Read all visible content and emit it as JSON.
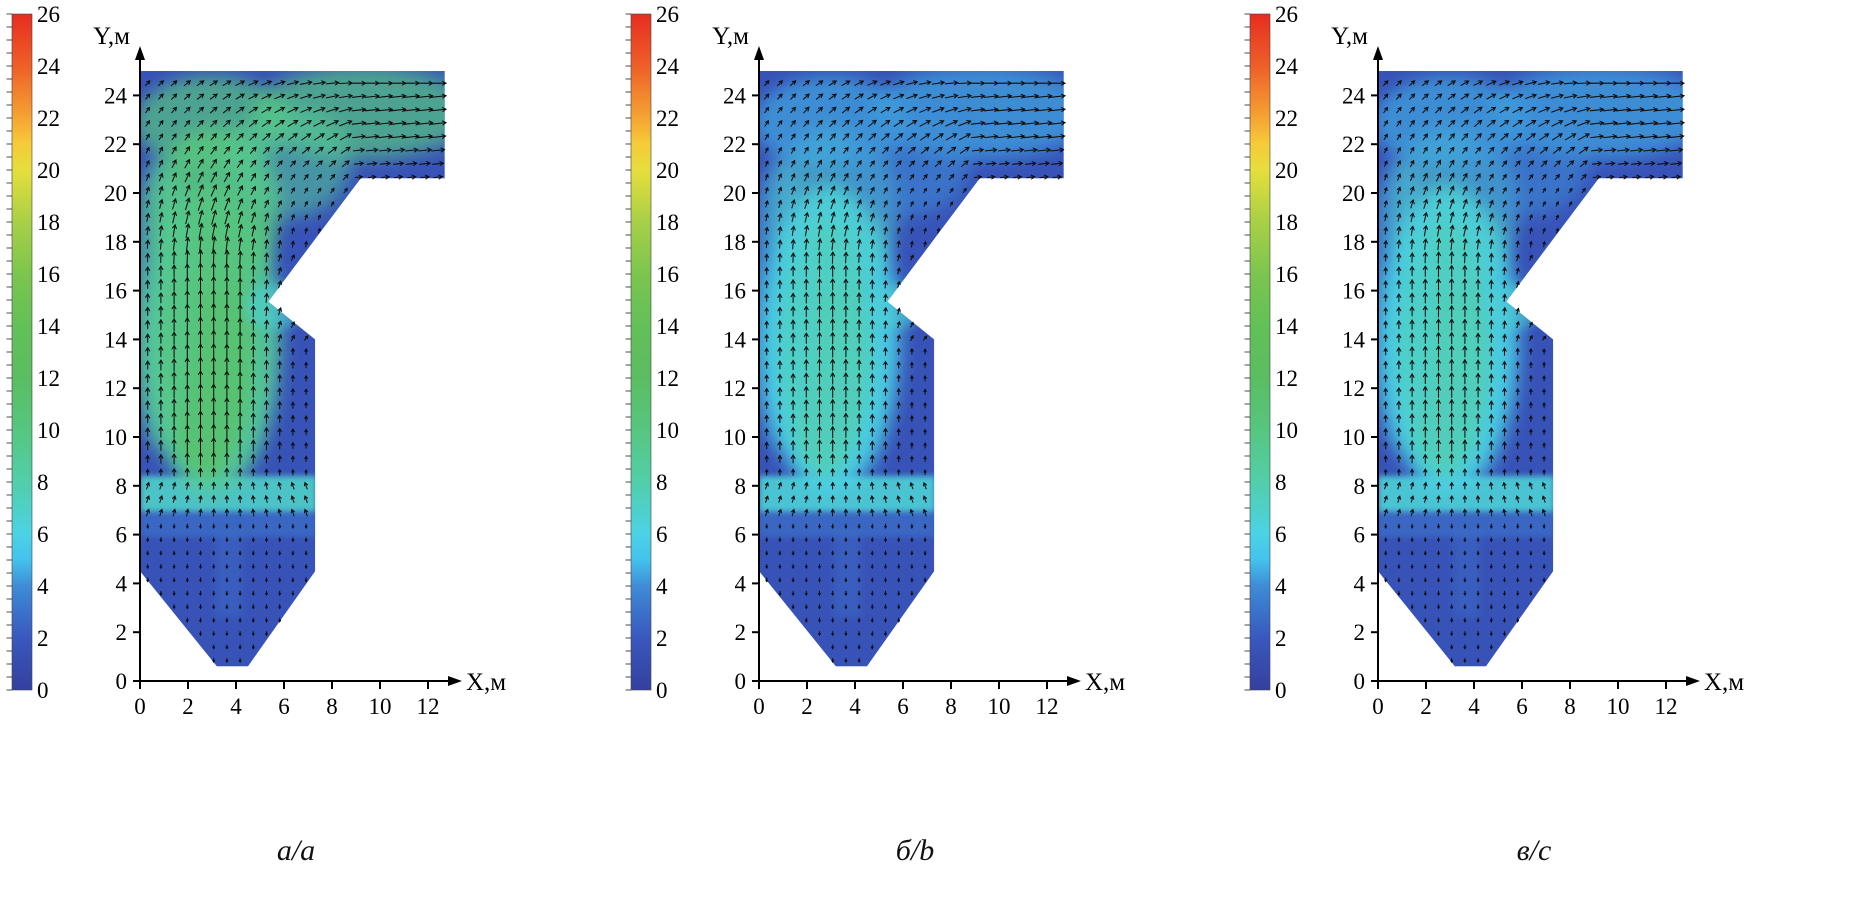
{
  "chart_data": [
    {
      "type": "heatmap",
      "subplot_label": "a/a",
      "xlabel": "X,м",
      "ylabel": "Y,м",
      "x_ticks": [
        0,
        2,
        4,
        6,
        8,
        10,
        12
      ],
      "y_ticks": [
        0,
        2,
        4,
        6,
        8,
        10,
        12,
        14,
        16,
        18,
        20,
        22,
        24
      ],
      "xlim": [
        0,
        13.2
      ],
      "ylim": [
        0,
        25.5
      ],
      "grid": false,
      "legend": "none",
      "colorbar": {
        "min": 0,
        "max": 26,
        "ticks": [
          0,
          2,
          4,
          6,
          8,
          10,
          12,
          14,
          16,
          18,
          20,
          22,
          24,
          26
        ],
        "position": "left"
      },
      "series": "velocity vector field over furnace cross-section",
      "background_velocity": 1.6,
      "burner_band_velocity": 7,
      "core_velocity": 11,
      "upper_velocity": 10,
      "outline": [
        [
          3.2,
          0.6
        ],
        [
          0,
          4.5
        ],
        [
          0,
          25
        ],
        [
          12.7,
          25
        ],
        [
          12.7,
          20.6
        ],
        [
          9.2,
          20.6
        ],
        [
          5.35,
          15.55
        ],
        [
          7.3,
          14.0
        ],
        [
          7.3,
          4.5
        ],
        [
          4.5,
          0.6
        ]
      ]
    },
    {
      "type": "heatmap",
      "subplot_label": "б/b",
      "xlabel": "X,м",
      "ylabel": "Y,м",
      "x_ticks": [
        0,
        2,
        4,
        6,
        8,
        10,
        12
      ],
      "y_ticks": [
        0,
        2,
        4,
        6,
        8,
        10,
        12,
        14,
        16,
        18,
        20,
        22,
        24
      ],
      "xlim": [
        0,
        13.2
      ],
      "ylim": [
        0,
        25.5
      ],
      "grid": false,
      "legend": "none",
      "colorbar": {
        "min": 0,
        "max": 26,
        "ticks": [
          0,
          2,
          4,
          6,
          8,
          10,
          12,
          14,
          16,
          18,
          20,
          22,
          24,
          26
        ],
        "position": "left"
      },
      "series": "velocity vector field over furnace cross-section",
      "background_velocity": 1.6,
      "burner_band_velocity": 6.5,
      "core_velocity": 7.5,
      "upper_velocity": 4.5,
      "outline": [
        [
          3.2,
          0.6
        ],
        [
          0,
          4.5
        ],
        [
          0,
          25
        ],
        [
          12.7,
          25
        ],
        [
          12.7,
          20.6
        ],
        [
          9.2,
          20.6
        ],
        [
          5.35,
          15.55
        ],
        [
          7.3,
          14.0
        ],
        [
          7.3,
          4.5
        ],
        [
          4.5,
          0.6
        ]
      ]
    },
    {
      "type": "heatmap",
      "subplot_label": "в/c",
      "xlabel": "X,м",
      "ylabel": "Y,м",
      "x_ticks": [
        0,
        2,
        4,
        6,
        8,
        10,
        12
      ],
      "y_ticks": [
        0,
        2,
        4,
        6,
        8,
        10,
        12,
        14,
        16,
        18,
        20,
        22,
        24
      ],
      "xlim": [
        0,
        13.2
      ],
      "ylim": [
        0,
        25.5
      ],
      "grid": false,
      "legend": "none",
      "colorbar": {
        "min": 0,
        "max": 26,
        "ticks": [
          0,
          2,
          4,
          6,
          8,
          10,
          12,
          14,
          16,
          18,
          20,
          22,
          24,
          26
        ],
        "position": "left"
      },
      "series": "velocity vector field over furnace cross-section",
      "background_velocity": 1.6,
      "burner_band_velocity": 6.5,
      "core_velocity": 7.5,
      "upper_velocity": 4.5,
      "outline": [
        [
          3.2,
          0.6
        ],
        [
          0,
          4.5
        ],
        [
          0,
          25
        ],
        [
          12.7,
          25
        ],
        [
          12.7,
          20.6
        ],
        [
          9.2,
          20.6
        ],
        [
          5.35,
          15.55
        ],
        [
          7.3,
          14.0
        ],
        [
          7.3,
          4.5
        ],
        [
          4.5,
          0.6
        ]
      ]
    }
  ]
}
